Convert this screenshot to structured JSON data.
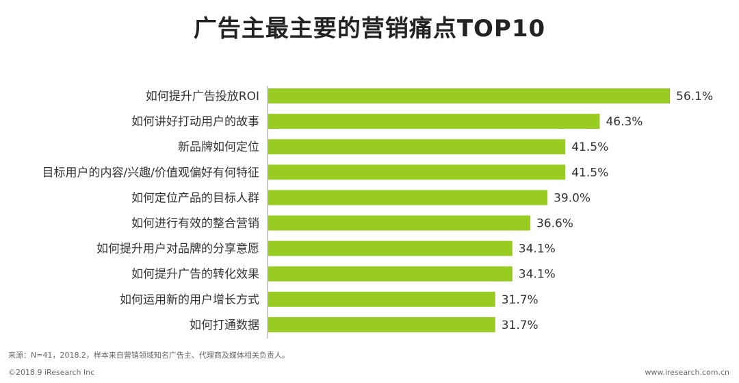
{
  "chart_data": {
    "type": "bar",
    "orientation": "horizontal",
    "title": "广告主最主要的营销痛点TOP10",
    "categories": [
      "如何提升广告投放ROI",
      "如何讲好打动用户的故事",
      "新品牌如何定位",
      "目标用户的内容/兴趣/价值观偏好有何特征",
      "如何定位产品的目标人群",
      "如何进行有效的整合营销",
      "如何提升用户对品牌的分享意愿",
      "如何提升广告的转化效果",
      "如何运用新的用户增长方式",
      "如何打通数据"
    ],
    "values": [
      56.1,
      46.3,
      41.5,
      41.5,
      39.0,
      36.6,
      34.1,
      34.1,
      31.7,
      31.7
    ],
    "value_labels": [
      "56.1%",
      "46.3%",
      "41.5%",
      "41.5%",
      "39.0%",
      "36.6%",
      "34.1%",
      "34.1%",
      "31.7%",
      "31.7%"
    ],
    "unit": "%",
    "xlim": [
      0,
      56.1
    ],
    "bar_color": "#99cc22",
    "grid": false,
    "legend": "none"
  },
  "footer": {
    "source": "来源：N=41，2018.2，样本来自营销领域知名广告主、代理商及媒体相关负责人。",
    "copyright": "©2018.9 iResearch Inc",
    "site": "www.iresearch.com.cn"
  }
}
